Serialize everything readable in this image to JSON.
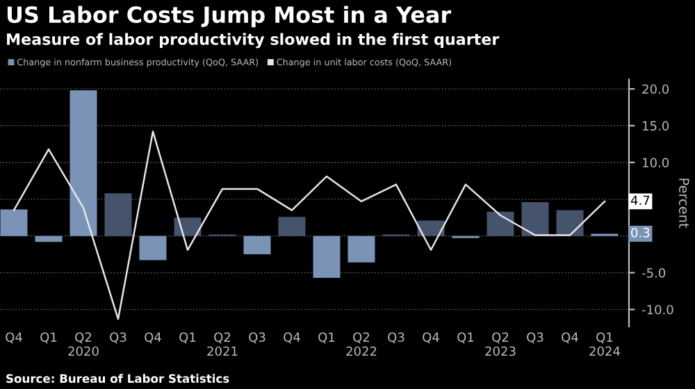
{
  "chart_data": {
    "type": "bar",
    "title": "US Labor Costs Jump Most in a Year",
    "subtitle": "Measure of labor productivity slowed in the first quarter",
    "categories": [
      "Q4",
      "Q1",
      "Q2\n2020",
      "Q3",
      "Q4",
      "Q1",
      "Q2\n2021",
      "Q3",
      "Q4",
      "Q1",
      "Q2\n2022",
      "Q3",
      "Q4",
      "Q1",
      "Q2\n2023",
      "Q3",
      "Q4",
      "Q1\n2024"
    ],
    "series": [
      {
        "name": "Change in nonfarm business productivity (QoQ, SAAR)",
        "color": "#7a93b7",
        "colors": [
          "#7a93b7",
          "#7a93b7",
          "#7a93b7",
          "#46536c",
          "#7a93b7",
          "#46536c",
          "#46536c",
          "#7a93b7",
          "#46536c",
          "#7a93b7",
          "#7a93b7",
          "#46536c",
          "#46536c",
          "#7a93b7",
          "#46536c",
          "#46536c",
          "#46536c",
          "#7a93b7"
        ],
        "values": [
          3.6,
          -0.8,
          19.8,
          5.8,
          -3.3,
          2.5,
          0.2,
          -2.5,
          2.6,
          -5.7,
          -3.6,
          0.2,
          2.1,
          -0.3,
          3.3,
          4.6,
          3.5,
          0.3
        ]
      },
      {
        "name": "Change in unit labor costs (QoQ, SAAR)",
        "type": "line",
        "color": "#e6e6e6",
        "values": [
          3.5,
          11.8,
          3.8,
          -11.3,
          14.2,
          -1.9,
          6.4,
          6.4,
          3.5,
          8.1,
          4.7,
          7.0,
          -1.9,
          7.0,
          2.8,
          0.1,
          0.1,
          4.7
        ]
      }
    ],
    "ylabel": "Percent",
    "ylim": [
      -12.3,
      21.3
    ],
    "yticks": [
      {
        "value": -10,
        "label": "-10.0"
      },
      {
        "value": -5,
        "label": "-5.0"
      },
      {
        "value": 0,
        "label": null
      },
      {
        "value": 5,
        "label": null
      },
      {
        "value": 10,
        "label": "10.0"
      },
      {
        "value": 15,
        "label": "15.0"
      },
      {
        "value": 20,
        "label": "20.0"
      }
    ],
    "grid": "y",
    "legend": "top left",
    "annotations": [
      {
        "text": "4.7",
        "x": "Q1\n2024",
        "y": 4.7
      },
      {
        "text": "0.3",
        "x": "Q1\n2024",
        "y": 0.3
      },
      "Source: Bureau of Labor Statistics"
    ]
  }
}
